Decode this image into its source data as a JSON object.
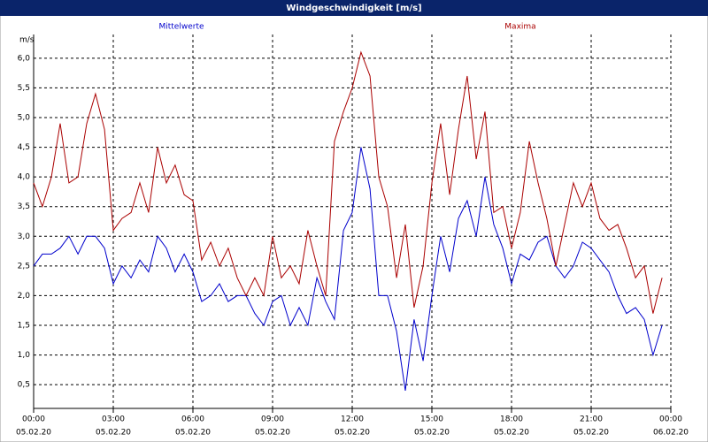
{
  "chart_data": {
    "type": "line",
    "title": "Windgeschwindigkeit [m/s]",
    "y_unit": "m/s",
    "x": [
      0,
      0.33,
      0.67,
      1,
      1.33,
      1.67,
      2,
      2.33,
      2.67,
      3,
      3.33,
      3.67,
      4,
      4.33,
      4.67,
      5,
      5.33,
      5.67,
      6,
      6.33,
      6.67,
      7,
      7.33,
      7.67,
      8,
      8.33,
      8.67,
      9,
      9.33,
      9.67,
      10,
      10.33,
      10.67,
      11,
      11.33,
      11.67,
      12,
      12.33,
      12.67,
      13,
      13.33,
      13.67,
      14,
      14.33,
      14.67,
      15,
      15.33,
      15.67,
      16,
      16.33,
      16.67,
      17,
      17.33,
      17.67,
      18,
      18.33,
      18.67,
      19,
      19.33,
      19.67,
      20,
      20.33,
      20.67,
      21,
      21.33,
      21.67,
      22,
      22.33,
      22.67,
      23,
      23.33,
      23.67
    ],
    "series": [
      {
        "name": "Mittelwerte",
        "color": "#0000cc",
        "values": [
          2.5,
          2.7,
          2.7,
          2.8,
          3.0,
          2.7,
          3.0,
          3.0,
          2.8,
          2.2,
          2.5,
          2.3,
          2.6,
          2.4,
          3.0,
          2.8,
          2.4,
          2.7,
          2.4,
          1.9,
          2.0,
          2.2,
          1.9,
          2.0,
          2.0,
          1.7,
          1.5,
          1.9,
          2.0,
          1.5,
          1.8,
          1.5,
          2.3,
          1.9,
          1.6,
          3.1,
          3.4,
          4.5,
          3.8,
          2.0,
          2.0,
          1.4,
          0.4,
          1.6,
          0.9,
          2.0,
          3.0,
          2.4,
          3.3,
          3.6,
          3.0,
          4.0,
          3.2,
          2.8,
          2.2,
          2.7,
          2.6,
          2.9,
          3.0,
          2.5,
          2.3,
          2.5,
          2.9,
          2.8,
          2.6,
          2.4,
          2.0,
          1.7,
          1.8,
          1.6,
          1.0,
          1.5
        ]
      },
      {
        "name": "Maxima",
        "color": "#aa0000",
        "values": [
          3.9,
          3.5,
          4.0,
          4.9,
          3.9,
          4.0,
          4.9,
          5.4,
          4.8,
          3.1,
          3.3,
          3.4,
          3.9,
          3.4,
          4.5,
          3.9,
          4.2,
          3.7,
          3.6,
          2.6,
          2.9,
          2.5,
          2.8,
          2.3,
          2.0,
          2.3,
          2.0,
          3.0,
          2.3,
          2.5,
          2.2,
          3.1,
          2.5,
          2.0,
          4.6,
          5.1,
          5.5,
          6.1,
          5.7,
          4.0,
          3.5,
          2.3,
          3.2,
          1.8,
          2.5,
          3.9,
          4.9,
          3.7,
          4.8,
          5.7,
          4.3,
          5.1,
          3.4,
          3.5,
          2.8,
          3.4,
          4.6,
          3.9,
          3.3,
          2.5,
          3.2,
          3.9,
          3.5,
          3.9,
          3.3,
          3.1,
          3.2,
          2.8,
          2.3,
          2.5,
          1.7,
          2.3
        ]
      }
    ],
    "xlim": [
      0,
      24
    ],
    "xticks": [
      {
        "value": 0,
        "label": "00:00",
        "date": "05.02.20"
      },
      {
        "value": 3,
        "label": "03:00",
        "date": "05.02.20"
      },
      {
        "value": 6,
        "label": "06:00",
        "date": "05.02.20"
      },
      {
        "value": 9,
        "label": "09:00",
        "date": "05.02.20"
      },
      {
        "value": 12,
        "label": "12:00",
        "date": "05.02.20"
      },
      {
        "value": 15,
        "label": "15:00",
        "date": "05.02.20"
      },
      {
        "value": 18,
        "label": "18:00",
        "date": "05.02.20"
      },
      {
        "value": 21,
        "label": "21:00",
        "date": "05.02.20"
      },
      {
        "value": 24,
        "label": "00:00",
        "date": "06.02.20"
      }
    ],
    "ylim": [
      0.1,
      6.4
    ],
    "yticks": [
      {
        "value": 0.5,
        "label": "0,5"
      },
      {
        "value": 1,
        "label": "1,0"
      },
      {
        "value": 1.5,
        "label": "1,5"
      },
      {
        "value": 2,
        "label": "2,0"
      },
      {
        "value": 2.5,
        "label": "2,5"
      },
      {
        "value": 3,
        "label": "3,0"
      },
      {
        "value": 3.5,
        "label": "3,5"
      },
      {
        "value": 4,
        "label": "4,0"
      },
      {
        "value": 4.5,
        "label": "4,5"
      },
      {
        "value": 5,
        "label": "5,0"
      },
      {
        "value": 5.5,
        "label": "5,5"
      },
      {
        "value": 6,
        "label": "6,0"
      }
    ],
    "grid": true
  }
}
